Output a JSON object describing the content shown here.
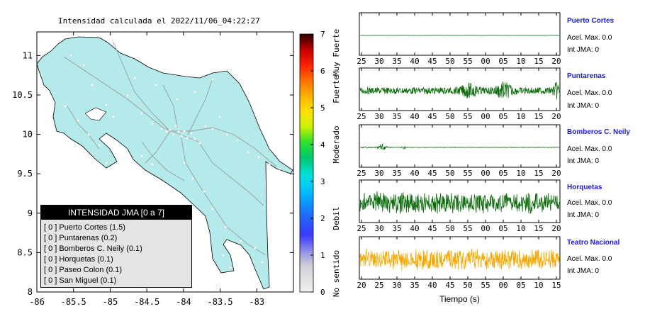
{
  "map": {
    "title": "Intensidad calculada el 2022/11/06_04:22:27",
    "x_ticks": [
      "-86",
      "-85.5",
      "-85",
      "-84.5",
      "-84",
      "-83.5",
      "-83"
    ],
    "y_ticks": [
      "11",
      "10.5",
      "10",
      "9.5",
      "9",
      "8.5",
      "8"
    ],
    "xlim": [
      -86,
      -82.5
    ],
    "ylim": [
      8,
      11.3
    ],
    "land_color": "#b4ebea"
  },
  "colorbar": {
    "ticks": [
      "0",
      "1",
      "2",
      "3",
      "4",
      "5",
      "6",
      "7"
    ],
    "range": [
      0,
      7
    ],
    "labels": [
      {
        "text": "No sentido",
        "level": 0.5
      },
      {
        "text": "Debil",
        "level": 2.0
      },
      {
        "text": "Moderado",
        "level": 4.0
      },
      {
        "text": "Fuerte",
        "level": 5.5
      },
      {
        "text": "Muy Fuerte",
        "level": 6.5
      }
    ]
  },
  "legend": {
    "title": "INTENSIDAD JMA [0 a 7]",
    "rows": [
      "[ 0 ]  Puerto Cortes (1.5)",
      "[ 0 ]  Puntarenas (0.2)",
      "[ 0 ]  Bomberos C. Neily (0.1)",
      "[ 0 ]  Horquetas (0.1)",
      "[ 0 ]  Paseo Colon (0.1)",
      "[ 0 ]  San Miguel (0.1)"
    ]
  },
  "stations": [
    {
      "name": "Puerto Cortes",
      "acc": "Acel. Max. 0.0",
      "int": "Int JMA: 0",
      "color": "#0a6b0a",
      "amp": 0.02,
      "ticks": [
        "25",
        "30",
        "35",
        "40",
        "45",
        "50",
        "55",
        "00",
        "05",
        "10",
        "15",
        "20"
      ]
    },
    {
      "name": "Puntarenas",
      "acc": "Acel. Max. 0.0",
      "int": "Int JMA: 0",
      "color": "#0a6b0a",
      "amp": 0.45,
      "ticks": [
        "25",
        "30",
        "35",
        "40",
        "45",
        "50",
        "55",
        "00",
        "05",
        "10",
        "15",
        "20"
      ]
    },
    {
      "name": "Bomberos C. Neily",
      "acc": "Acel. Max. 0.0",
      "int": "Int JMA: 0",
      "color": "#0a6b0a",
      "amp": 0.08,
      "ticks": [
        "25",
        "30",
        "35",
        "40",
        "45",
        "50",
        "55",
        "00",
        "05",
        "10",
        "15",
        "20"
      ]
    },
    {
      "name": "Horquetas",
      "acc": "Acel. Max. 0.0",
      "int": "Int JMA: 0",
      "color": "#0a6b0a",
      "amp": 0.55,
      "ticks": [
        "25",
        "30",
        "35",
        "40",
        "45",
        "50",
        "55",
        "00",
        "05",
        "10",
        "15",
        "20"
      ]
    },
    {
      "name": "Teatro Nacional",
      "acc": "Acel. Max. 0.0",
      "int": "Int JMA: 0",
      "color": "#f7a800",
      "amp": 0.55,
      "ticks": [
        "20",
        "25",
        "30",
        "35",
        "40",
        "45",
        "50",
        "55",
        "00",
        "05",
        "10",
        "15"
      ]
    }
  ],
  "time_label": "Tiempo (s)"
}
